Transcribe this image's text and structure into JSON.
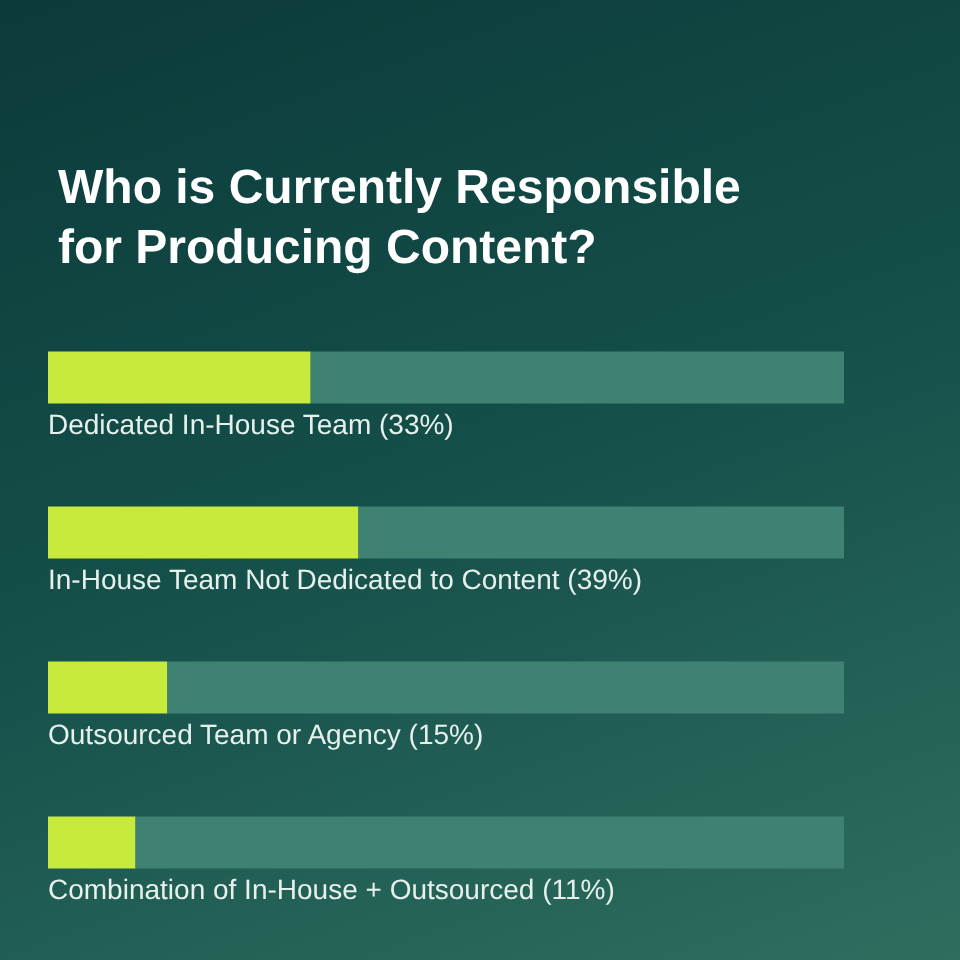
{
  "chart_data": {
    "type": "bar",
    "orientation": "horizontal",
    "stacked": true,
    "title": "Who is Currently Responsible for Producing Content?",
    "categories": [
      null,
      null,
      null,
      null
    ],
    "series": [
      {
        "color": "#c8ea3c",
        "values": [
          33,
          39,
          15,
          11
        ],
        "value_labels": [
          "Dedicated In-House Team (33%)",
          "In-House Team Not Dedicated to Content (39%)",
          "Outsourced Team or Agency (15%)",
          "Combination of In-House + Outsourced (11%)"
        ]
      },
      {
        "color": "#3f8274",
        "values": [
          67,
          61,
          85,
          89
        ]
      }
    ],
    "tick_labels": false
  }
}
